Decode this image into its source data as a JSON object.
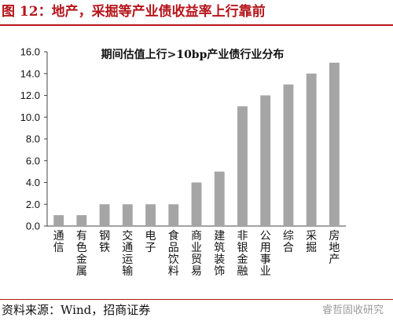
{
  "figure_title": "图 12：地产，采掘等产业债收益率上行靠前",
  "source_note": "资料来源：Wind，招商证券",
  "watermark": "睿哲固收研究",
  "chart_data": {
    "type": "bar",
    "title": "期间估值上行>10bp产业债行业分布",
    "xlabel": "",
    "ylabel": "",
    "ylim": [
      0,
      16
    ],
    "yticks": [
      0.0,
      2.0,
      4.0,
      6.0,
      8.0,
      10.0,
      12.0,
      14.0,
      16.0
    ],
    "ytick_labels": [
      "0.0",
      "2.0",
      "4.0",
      "6.0",
      "8.0",
      "10.0",
      "12.0",
      "14.0",
      "16.0"
    ],
    "categories": [
      "通信",
      "有色金属",
      "钢铁",
      "交通运输",
      "电子",
      "食品饮料",
      "商业贸易",
      "建筑装饰",
      "非银金融",
      "公用事业",
      "综合",
      "采掘",
      "房地产"
    ],
    "values": [
      1,
      1,
      2,
      2,
      2,
      2,
      4,
      5,
      11,
      12,
      13,
      14,
      15
    ],
    "bar_color": "#a5a5a5",
    "grid": false,
    "legend": "none"
  }
}
